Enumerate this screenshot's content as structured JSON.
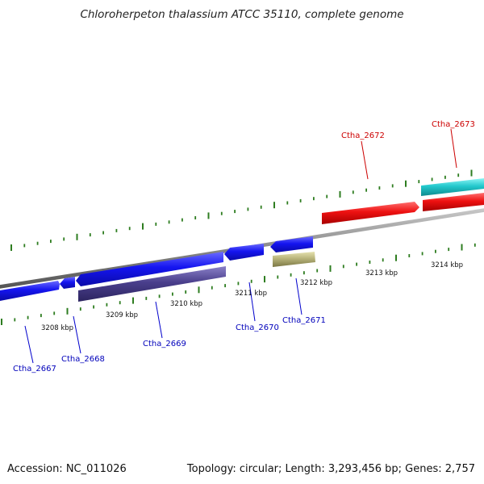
{
  "title": "Chloroherpeton thalassium ATCC 35110, complete genome",
  "footer": {
    "accession": "Accession: NC_011026",
    "summary": "Topology: circular; Length: 3,293,456 bp; Genes: 2,757"
  },
  "colors": {
    "backbone": "#888888",
    "tick": "#2e7d20",
    "forward_gene": "#ee1111",
    "forward_label": "#cc0000",
    "reverse_gene": "#1111ee",
    "reverse_label": "#0000bb",
    "dark_cds": "#4a3f8c",
    "olive_cds": "#b8b47a",
    "teal_cds": "#22c8cc"
  },
  "kbp_labels": [
    "3208 kbp",
    "3209 kbp",
    "3210 kbp",
    "3211 kbp",
    "3212 kbp",
    "3213 kbp",
    "3214 kbp"
  ],
  "genes": [
    {
      "id": "Ctha_2667",
      "strand": "reverse"
    },
    {
      "id": "Ctha_2668",
      "strand": "reverse"
    },
    {
      "id": "Ctha_2669",
      "strand": "reverse"
    },
    {
      "id": "Ctha_2670",
      "strand": "reverse"
    },
    {
      "id": "Ctha_2671",
      "strand": "reverse"
    },
    {
      "id": "Ctha_2672",
      "strand": "forward"
    },
    {
      "id": "Ctha_2673",
      "strand": "forward"
    }
  ]
}
